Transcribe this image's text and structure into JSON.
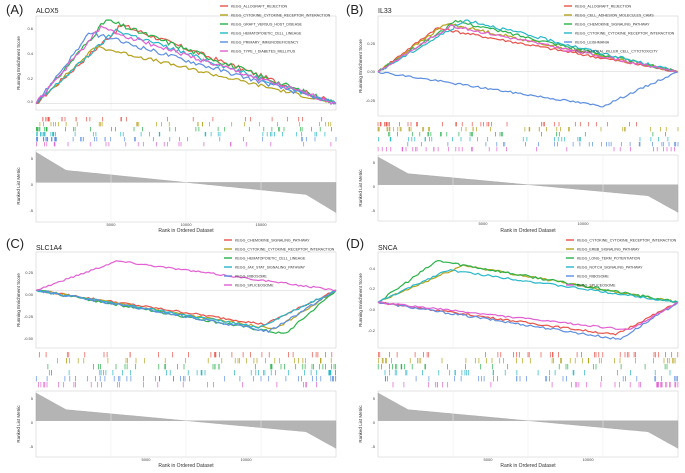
{
  "figure": {
    "x_axis_label": "Rank in Ordered Dataset",
    "es_axis_label": "Running Enrichment Score",
    "metric_axis_label": "Ranked List Metric"
  },
  "series_colors": [
    "#e8534a",
    "#b5a21c",
    "#2ab24a",
    "#27b7c8",
    "#5d8fe0",
    "#e25fd2"
  ],
  "chart_data": [
    {
      "type": "line",
      "panel_label": "(A)",
      "title": "ALOX5",
      "series": [
        {
          "name": "KEGG_ALLOGRAFT_REJECTION",
          "color": "#e8534a",
          "peak": 0.62
        },
        {
          "name": "KEGG_CYTOKINE_CYTOKINE_RECEPTOR_INTERACTION",
          "color": "#b5a21c",
          "peak": 0.45
        },
        {
          "name": "KEGG_GRAFT_VERSUS_HOST_DISEASE",
          "color": "#2ab24a",
          "peak": 0.66
        },
        {
          "name": "KEGG_HEMATOPOIETIC_CELL_LINEAGE",
          "color": "#27b7c8",
          "peak": 0.58
        },
        {
          "name": "KEGG_PRIMARY_IMMUNODEFICIENCY",
          "color": "#5d8fe0",
          "peak": 0.56
        },
        {
          "name": "KEGG_TYPE_I_DIABETES_MELLITUS",
          "color": "#e25fd2",
          "peak": 0.6
        }
      ],
      "y_ticks": [
        "0.6",
        "0.4",
        "0.2",
        "0.0"
      ],
      "metric_ticks": [
        "5",
        "0",
        "-5"
      ],
      "x_ticks": [
        "5000",
        "10000",
        "15000"
      ],
      "x_range": [
        0,
        20000
      ]
    },
    {
      "type": "line",
      "panel_label": "(B)",
      "title": "IL33",
      "series": [
        {
          "name": "KEGG_ALLOGRAFT_REJECTION",
          "color": "#e8534a",
          "peak": 0.38
        },
        {
          "name": "KEGG_CELL_ADHESION_MOLECULES_CAMS",
          "color": "#b5a21c",
          "peak": 0.42
        },
        {
          "name": "KEGG_CHEMOKINE_SIGNALING_PATHWAY",
          "color": "#2ab24a",
          "peak": 0.44
        },
        {
          "name": "KEGG_CYTOKINE_CYTOKINE_RECEPTOR_INTERACTION",
          "color": "#27b7c8",
          "peak": 0.45
        },
        {
          "name": "KEGG_LEISHMANIA",
          "color": "#5d8fe0",
          "peak": -0.3
        },
        {
          "name": "KEGG_NATURAL_KILLER_CELL_CYTOTOXICITY",
          "color": "#e25fd2",
          "peak": 0.4
        }
      ],
      "y_ticks": [
        "0.25",
        "0.00",
        "-0.25"
      ],
      "metric_ticks": [
        "5",
        "0",
        "-5"
      ],
      "x_ticks": [
        "5000",
        "10000"
      ],
      "x_range": [
        0,
        15000
      ]
    },
    {
      "type": "line",
      "panel_label": "(C)",
      "title": "SLC1A4",
      "series": [
        {
          "name": "KEGG_CHEMOKINE_SIGNALING_PATHWAY",
          "color": "#e8534a",
          "peak": -0.35
        },
        {
          "name": "KEGG_CYTOKINE_CYTOKINE_RECEPTOR_INTERACTION",
          "color": "#b5a21c",
          "peak": -0.4
        },
        {
          "name": "KEGG_HEMATOPOIETIC_CELL_LINEAGE",
          "color": "#2ab24a",
          "peak": -0.45
        },
        {
          "name": "KEGG_JAK_STAT_SIGNALING_PATHWAY",
          "color": "#27b7c8",
          "peak": -0.38
        },
        {
          "name": "KEGG_RIBOSOME",
          "color": "#5d8fe0",
          "peak": -0.42
        },
        {
          "name": "KEGG_SPLICEOSOME",
          "color": "#e25fd2",
          "peak": 0.3
        }
      ],
      "y_ticks": [
        "0.25",
        "0.00",
        "-0.25",
        "-0.50"
      ],
      "metric_ticks": [
        "5",
        "0",
        "-5"
      ],
      "x_ticks": [
        "5000",
        "10000"
      ],
      "x_range": [
        0,
        15000
      ]
    },
    {
      "type": "line",
      "panel_label": "(D)",
      "title": "SNCA",
      "series": [
        {
          "name": "KEGG_CYTOKINE_CYTOKINE_RECEPTOR_INTERACTION",
          "color": "#e8534a",
          "peak": -0.35
        },
        {
          "name": "KEGG_ERBB_SIGNALING_PATHWAY",
          "color": "#b5a21c",
          "peak": 0.4
        },
        {
          "name": "KEGG_LONG_TERM_POTENTIATION",
          "color": "#2ab24a",
          "peak": 0.45
        },
        {
          "name": "KEGG_NOTCH_SIGNALING_PATHWAY",
          "color": "#27b7c8",
          "peak": 0.35
        },
        {
          "name": "KEGG_RIBOSOME",
          "color": "#5d8fe0",
          "peak": -0.4
        },
        {
          "name": "KEGG_SPLICEOSOME",
          "color": "#e25fd2",
          "peak": -0.3
        }
      ],
      "y_ticks": [
        "0.4",
        "0.2",
        "0.0",
        "-0.2"
      ],
      "metric_ticks": [
        "5",
        "0",
        "-5"
      ],
      "x_ticks": [
        "5000",
        "10000"
      ],
      "x_range": [
        0,
        15000
      ]
    }
  ]
}
